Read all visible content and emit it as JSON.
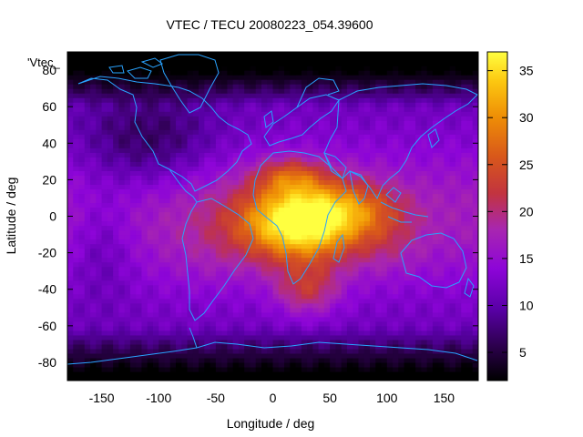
{
  "chart_data": {
    "type": "heatmap",
    "title": "VTEC / TECU 20080223_054.39600",
    "key_label": "'Vtec_",
    "xlabel": "Longitude / deg",
    "ylabel": "Latitude / deg",
    "xlim": [
      -180,
      180
    ],
    "ylim": [
      -90,
      90
    ],
    "xticks": [
      "-150",
      "-100",
      "-50",
      "0",
      "50",
      "100",
      "150"
    ],
    "yticks": [
      "80",
      "60",
      "40",
      "20",
      "0",
      "-20",
      "-40",
      "-60",
      "-80"
    ],
    "colorbar": {
      "range": [
        2,
        37
      ],
      "ticks": [
        "5",
        "10",
        "15",
        "20",
        "25",
        "30",
        "35"
      ],
      "palette": [
        "#000000",
        "#2a0049",
        "#5a00a8",
        "#8d05d8",
        "#a826b0",
        "#c2343f",
        "#d8571b",
        "#ee8d06",
        "#fcc710",
        "#ffff40"
      ]
    },
    "coastline_color": "#29a3ff",
    "grid": false,
    "description_values": {
      "max_vtec_location": "equatorial Africa, lon ~25, lat ~-5",
      "max_vtec": 37,
      "min_vtec_regions": [
        "north polar",
        "south polar"
      ]
    }
  }
}
